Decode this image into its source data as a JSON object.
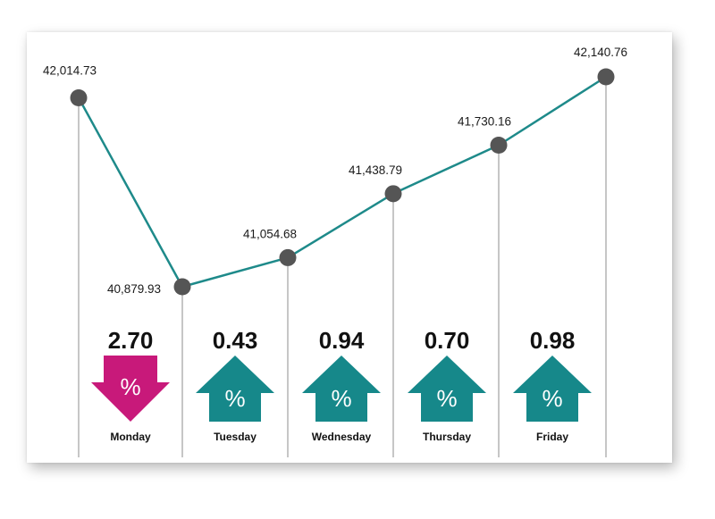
{
  "chart_data": {
    "type": "line",
    "categories": [
      "Monday",
      "Tuesday",
      "Wednesday",
      "Thursday",
      "Friday"
    ],
    "index_values": [
      42014.73,
      40879.93,
      41054.68,
      41438.79,
      41730.16,
      42140.76
    ],
    "index_labels": [
      "42,014.73",
      "40,879.93",
      "41,054.68",
      "41,438.79",
      "41,730.16",
      "42,140.76"
    ],
    "daily_changes": [
      {
        "day": "Monday",
        "percent": "2.70",
        "direction": "down"
      },
      {
        "day": "Tuesday",
        "percent": "0.43",
        "direction": "up"
      },
      {
        "day": "Wednesday",
        "percent": "0.94",
        "direction": "up"
      },
      {
        "day": "Thursday",
        "percent": "0.70",
        "direction": "up"
      },
      {
        "day": "Friday",
        "percent": "0.98",
        "direction": "up"
      }
    ],
    "percent_symbol": "%",
    "colors": {
      "line": "#1e8a8a",
      "marker": "#555555",
      "up_arrow": "#16888a",
      "down_arrow": "#c8197a",
      "guide": "#8c8c8c"
    }
  }
}
